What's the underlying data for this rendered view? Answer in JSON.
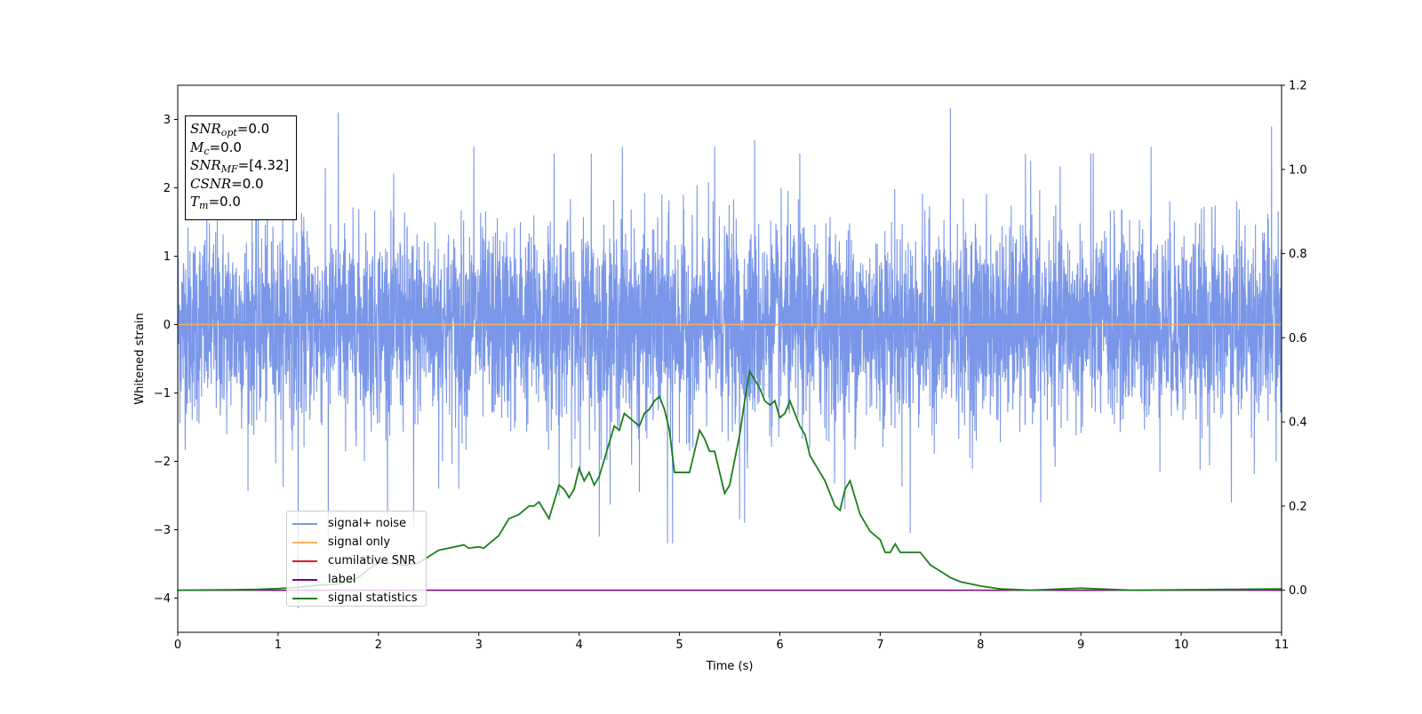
{
  "chart_data": {
    "type": "line",
    "xlabel": "Time (s)",
    "ylabel": "Whitened strain",
    "xlim": [
      0,
      11
    ],
    "ylim": [
      -4.5,
      3.5
    ],
    "y2lim": [
      -0.1,
      1.2
    ],
    "x_ticks": [
      "0",
      "1",
      "2",
      "3",
      "4",
      "5",
      "6",
      "7",
      "8",
      "9",
      "10",
      "11"
    ],
    "y_ticks": [
      "3",
      "2",
      "1",
      "0",
      "−1",
      "−2",
      "−3",
      "−4"
    ],
    "y2_ticks": [
      "1.2",
      "1.0",
      "0.8",
      "0.6",
      "0.4",
      "0.2",
      "0.0"
    ],
    "grid": false,
    "legend_position": "lower-left",
    "annotations": [
      {
        "sym": "SNR",
        "sub": "opt",
        "value": "=0.0"
      },
      {
        "sym": "M",
        "sub": "c",
        "value": "=0.0"
      },
      {
        "sym": "SNR",
        "sub": "MF",
        "value": "=[4.32]"
      },
      {
        "sym": "CSNR",
        "sub": "",
        "value": "=0.0"
      },
      {
        "sym": "T",
        "sub": "m",
        "value": "=0.0"
      }
    ],
    "series": [
      {
        "name": "signal+ noise",
        "axis": "left",
        "color": "#7a96e8",
        "noise_sigma": 0.7,
        "x": [
          0.0,
          1.6,
          2.35,
          2.6,
          2.95,
          3.75,
          4.12,
          4.2,
          4.43,
          4.88,
          5.35,
          5.65,
          5.75,
          6.2,
          7.7,
          8.5,
          9.1,
          9.7,
          10.5,
          10.9
        ],
        "y": [
          2.3,
          3.1,
          2.7,
          -2.4,
          2.6,
          2.5,
          2.5,
          -3.1,
          2.6,
          -3.2,
          2.6,
          -2.9,
          2.7,
          2.5,
          3.17,
          2.4,
          2.5,
          2.6,
          2.6,
          2.9
        ],
        "valley_x": [
          1.2,
          1.5,
          2.35,
          2.8,
          3.8,
          4.6,
          4.93,
          5.6,
          6.65,
          7.3,
          8.6,
          10.5
        ],
        "valley_y": [
          -4.15,
          -3.3,
          -2.95,
          -2.4,
          -2.5,
          -2.45,
          -3.2,
          -2.85,
          -2.7,
          -3.05,
          -2.6,
          -2.6
        ]
      },
      {
        "name": "signal only",
        "axis": "left",
        "color": "#f5b25a",
        "x": [
          0,
          11
        ],
        "y": [
          0,
          0
        ]
      },
      {
        "name": "cumilative SNR",
        "axis": "right",
        "color": "#e31a1c",
        "x": [],
        "y": []
      },
      {
        "name": "label",
        "axis": "right",
        "color": "#800080",
        "x": [
          0,
          11
        ],
        "y": [
          0.0,
          0.0
        ]
      },
      {
        "name": "signal statistics",
        "axis": "right",
        "color": "#1a7f1a",
        "x": [
          0,
          0.5,
          0.8,
          1.0,
          1.2,
          1.4,
          1.6,
          1.7,
          1.8,
          1.9,
          2.0,
          2.1,
          2.2,
          2.3,
          2.4,
          2.5,
          2.6,
          2.7,
          2.8,
          2.85,
          2.9,
          3.0,
          3.05,
          3.1,
          3.2,
          3.3,
          3.4,
          3.5,
          3.55,
          3.6,
          3.7,
          3.8,
          3.85,
          3.9,
          3.95,
          4.0,
          4.05,
          4.1,
          4.15,
          4.2,
          4.25,
          4.3,
          4.35,
          4.4,
          4.45,
          4.5,
          4.55,
          4.6,
          4.65,
          4.7,
          4.75,
          4.8,
          4.85,
          4.9,
          4.95,
          5.0,
          5.1,
          5.2,
          5.25,
          5.3,
          5.35,
          5.4,
          5.45,
          5.5,
          5.55,
          5.6,
          5.65,
          5.7,
          5.75,
          5.8,
          5.85,
          5.9,
          5.95,
          6.0,
          6.05,
          6.1,
          6.15,
          6.2,
          6.25,
          6.3,
          6.35,
          6.4,
          6.45,
          6.5,
          6.55,
          6.6,
          6.65,
          6.7,
          6.75,
          6.8,
          6.9,
          7.0,
          7.05,
          7.1,
          7.15,
          7.2,
          7.3,
          7.4,
          7.5,
          7.6,
          7.7,
          7.8,
          8.0,
          8.2,
          8.5,
          9.0,
          9.5,
          10.0,
          10.5,
          11.0
        ],
        "y": [
          0.0,
          0.001,
          0.002,
          0.004,
          0.007,
          0.012,
          0.015,
          0.02,
          0.03,
          0.05,
          0.065,
          0.065,
          0.06,
          0.06,
          0.065,
          0.08,
          0.095,
          0.1,
          0.105,
          0.108,
          0.1,
          0.103,
          0.1,
          0.11,
          0.13,
          0.17,
          0.18,
          0.2,
          0.2,
          0.21,
          0.17,
          0.25,
          0.24,
          0.22,
          0.24,
          0.29,
          0.26,
          0.28,
          0.25,
          0.27,
          0.31,
          0.35,
          0.39,
          0.38,
          0.42,
          0.41,
          0.4,
          0.39,
          0.42,
          0.43,
          0.45,
          0.46,
          0.43,
          0.38,
          0.28,
          0.28,
          0.28,
          0.38,
          0.36,
          0.33,
          0.33,
          0.28,
          0.23,
          0.25,
          0.31,
          0.37,
          0.45,
          0.52,
          0.5,
          0.48,
          0.45,
          0.44,
          0.45,
          0.41,
          0.42,
          0.45,
          0.42,
          0.39,
          0.37,
          0.32,
          0.3,
          0.28,
          0.26,
          0.23,
          0.2,
          0.19,
          0.24,
          0.26,
          0.22,
          0.18,
          0.14,
          0.12,
          0.09,
          0.09,
          0.11,
          0.09,
          0.09,
          0.09,
          0.06,
          0.045,
          0.03,
          0.02,
          0.01,
          0.003,
          0.0,
          0.005,
          0.0,
          0.001,
          0.002,
          0.003
        ]
      }
    ]
  }
}
